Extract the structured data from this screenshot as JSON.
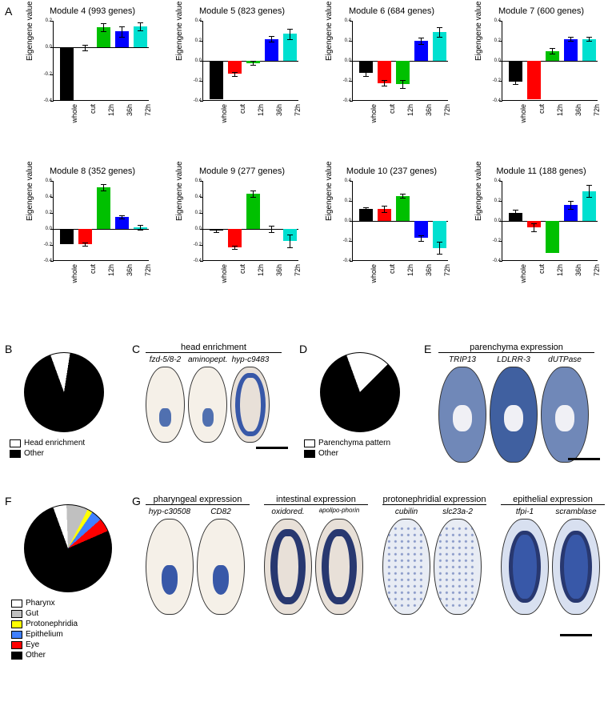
{
  "labels": {
    "A": "A",
    "B": "B",
    "C": "C",
    "D": "D",
    "E": "E",
    "F": "F",
    "G": "G"
  },
  "axis": {
    "y": "Eigengene value",
    "categories": [
      "whole",
      "cut",
      "12h",
      "36h",
      "72h"
    ]
  },
  "colors": {
    "whole": "#000000",
    "cut": "#ff0000",
    "12h": "#00c000",
    "36h": "#0000ff",
    "72h": "#00e0d0"
  },
  "modules": [
    {
      "title": "Module 4 (993 genes)",
      "ylim": [
        -0.4,
        0.2
      ],
      "values": [
        -0.4,
        0.0,
        0.15,
        0.12,
        0.16
      ],
      "err": [
        0,
        0.02,
        0.03,
        0.04,
        0.03
      ]
    },
    {
      "title": "Module 5 (823 genes)",
      "ylim": [
        -0.4,
        0.4
      ],
      "values": [
        -0.38,
        -0.13,
        -0.02,
        0.22,
        0.27
      ],
      "err": [
        0,
        0.02,
        0.02,
        0.03,
        0.05
      ]
    },
    {
      "title": "Module 6 (684 genes)",
      "ylim": [
        -0.4,
        0.4
      ],
      "values": [
        -0.12,
        -0.22,
        -0.23,
        0.2,
        0.29
      ],
      "err": [
        0.03,
        0.03,
        0.04,
        0.03,
        0.05
      ]
    },
    {
      "title": "Module 7 (600 genes)",
      "ylim": [
        -0.4,
        0.4
      ],
      "values": [
        -0.21,
        -0.38,
        0.1,
        0.22,
        0.22
      ],
      "err": [
        0.02,
        0,
        0.03,
        0.02,
        0.02
      ]
    },
    {
      "title": "Module 8 (352 genes)",
      "ylim": [
        -0.4,
        0.6
      ],
      "values": [
        -0.19,
        -0.19,
        0.52,
        0.15,
        0.02
      ],
      "err": [
        0,
        0.02,
        0.04,
        0.02,
        0.03
      ]
    },
    {
      "title": "Module 9 (277 genes)",
      "ylim": [
        -0.4,
        0.6
      ],
      "values": [
        -0.02,
        -0.23,
        0.44,
        0.0,
        -0.15
      ],
      "err": [
        0.02,
        0.02,
        0.04,
        0.04,
        0.08
      ]
    },
    {
      "title": "Module 10 (237 genes)",
      "ylim": [
        -0.4,
        0.4
      ],
      "values": [
        0.12,
        0.12,
        0.25,
        -0.17,
        -0.27
      ],
      "err": [
        0.02,
        0.03,
        0.02,
        0.03,
        0.06
      ]
    },
    {
      "title": "Module 11 (188 genes)",
      "ylim": [
        -0.4,
        0.4
      ],
      "values": [
        0.08,
        -0.06,
        -0.32,
        0.16,
        0.3
      ],
      "err": [
        0.03,
        0.04,
        0,
        0.04,
        0.06
      ]
    }
  ],
  "pieB": {
    "slices": [
      {
        "label": "Head enrichment",
        "color": "#ffffff",
        "pct": 8
      },
      {
        "label": "Other",
        "color": "#000000",
        "pct": 92
      }
    ]
  },
  "pieD": {
    "slices": [
      {
        "label": "Parenchyma pattern",
        "color": "#ffffff",
        "pct": 18
      },
      {
        "label": "Other",
        "color": "#000000",
        "pct": 82
      }
    ]
  },
  "pieF": {
    "slices": [
      {
        "label": "Pharynx",
        "color": "#ffffff",
        "pct": 5
      },
      {
        "label": "Gut",
        "color": "#c0c0c0",
        "pct": 8
      },
      {
        "label": "Protonephridia",
        "color": "#ffff00",
        "pct": 2
      },
      {
        "label": "Epithelium",
        "color": "#4080ff",
        "pct": 4
      },
      {
        "label": "Eye",
        "color": "#ff0000",
        "pct": 5
      },
      {
        "label": "Other",
        "color": "#000000",
        "pct": 76
      }
    ]
  },
  "groupC": {
    "title": "head enrichment",
    "items": [
      "fzd-5/8-2",
      "aminopept.",
      "hyp-c9483"
    ]
  },
  "groupE": {
    "title": "parenchyma expression",
    "items": [
      "TRIP13",
      "LDLRR-3",
      "dUTPase"
    ]
  },
  "groupG": [
    {
      "title": "pharyngeal expression",
      "items": [
        "hyp-c30508",
        "CD82"
      ]
    },
    {
      "title": "intestinal expression",
      "items": [
        "oxidored.",
        "apolipo-phorin"
      ]
    },
    {
      "title": "protonephridial expression",
      "items": [
        "cubilin",
        "slc23a-2"
      ]
    },
    {
      "title": "epithelial expression",
      "items": [
        "tfpi-1",
        "scramblase"
      ]
    }
  ],
  "specimen_colors": {
    "light": "#f5f0e8",
    "faint": "#e8e0d8",
    "blue": "#4060a0",
    "darkblue": "#283870",
    "mottled": "#7088b8"
  }
}
